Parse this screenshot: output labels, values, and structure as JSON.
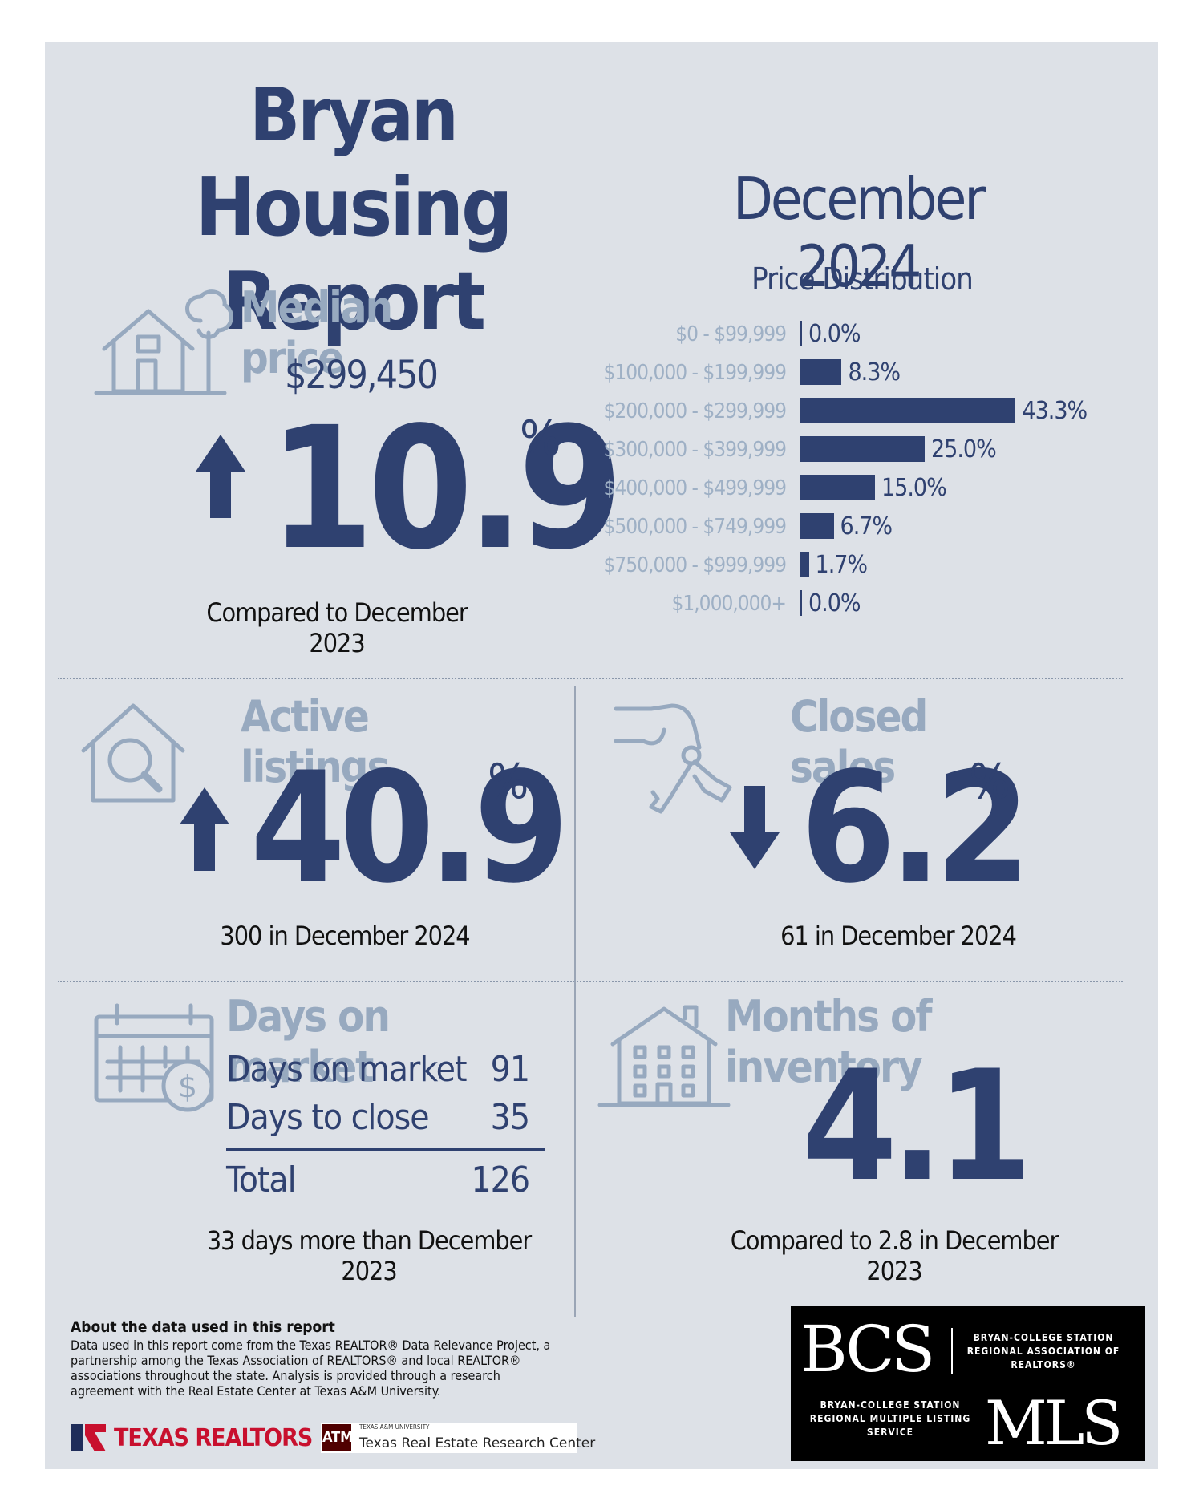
{
  "header": {
    "city": "Bryan",
    "report_title": "Housing Report",
    "period": "December 2024"
  },
  "median_price": {
    "title": "Median price",
    "value": "$299,450",
    "change_number": "10.9",
    "change_unit": "%",
    "direction": "up",
    "caption": "Compared to December 2023"
  },
  "price_distribution": {
    "title": "Price Distribution",
    "bars": [
      {
        "label": "$0 - $99,999",
        "value": 0.0,
        "display": "0.0%"
      },
      {
        "label": "$100,000 - $199,999",
        "value": 8.3,
        "display": "8.3%"
      },
      {
        "label": "$200,000 - $299,999",
        "value": 43.3,
        "display": "43.3%"
      },
      {
        "label": "$300,000 - $399,999",
        "value": 25.0,
        "display": "25.0%"
      },
      {
        "label": "$400,000 - $499,999",
        "value": 15.0,
        "display": "15.0%"
      },
      {
        "label": "$500,000 - $749,999",
        "value": 6.7,
        "display": "6.7%"
      },
      {
        "label": "$750,000 - $999,999",
        "value": 1.7,
        "display": "1.7%"
      },
      {
        "label": "$1,000,000+",
        "value": 0.0,
        "display": "0.0%"
      }
    ]
  },
  "active_listings": {
    "title": "Active listings",
    "change_number": "40.9",
    "change_unit": "%",
    "direction": "up",
    "caption": "300 in December 2024"
  },
  "closed_sales": {
    "title": "Closed sales",
    "change_number": "6.2",
    "change_unit": "%",
    "direction": "down",
    "caption": "61 in December 2024"
  },
  "days_on_market": {
    "title": "Days on market",
    "rows": [
      {
        "label": "Days on market",
        "value": "91"
      },
      {
        "label": "Days to close",
        "value": "35"
      }
    ],
    "total_label": "Total",
    "total_value": "126",
    "caption": "33 days more than December 2023"
  },
  "months_inventory": {
    "title": "Months of inventory",
    "value": "4.1",
    "caption": "Compared to 2.8 in December 2023"
  },
  "about": {
    "title": "About the data used in this report",
    "text": "Data used in this report come from the Texas REALTOR® Data Relevance Project, a partnership among the Texas Association of REALTORS® and local REALTOR® associations throughout the state. Analysis is provided through a research agreement with the Real Estate Center at Texas A&M University."
  },
  "logos": {
    "texas_realtors": "TEXAS REALTORS",
    "tamu_small": "TEXAS A&M UNIVERSITY",
    "tamu_center": "Texas Real Estate Research Center",
    "bcs_letters": "BCS",
    "bcs_assoc": "BRYAN-COLLEGE STATION REGIONAL ASSOCIATION OF REALTORS®",
    "mls_service": "BRYAN-COLLEGE STATION REGIONAL MULTIPLE LISTING SERVICE",
    "mls_letters": "MLS"
  },
  "colors": {
    "navy": "#2f4170",
    "steel": "#97a9bf",
    "panel": "#dde1e7"
  }
}
